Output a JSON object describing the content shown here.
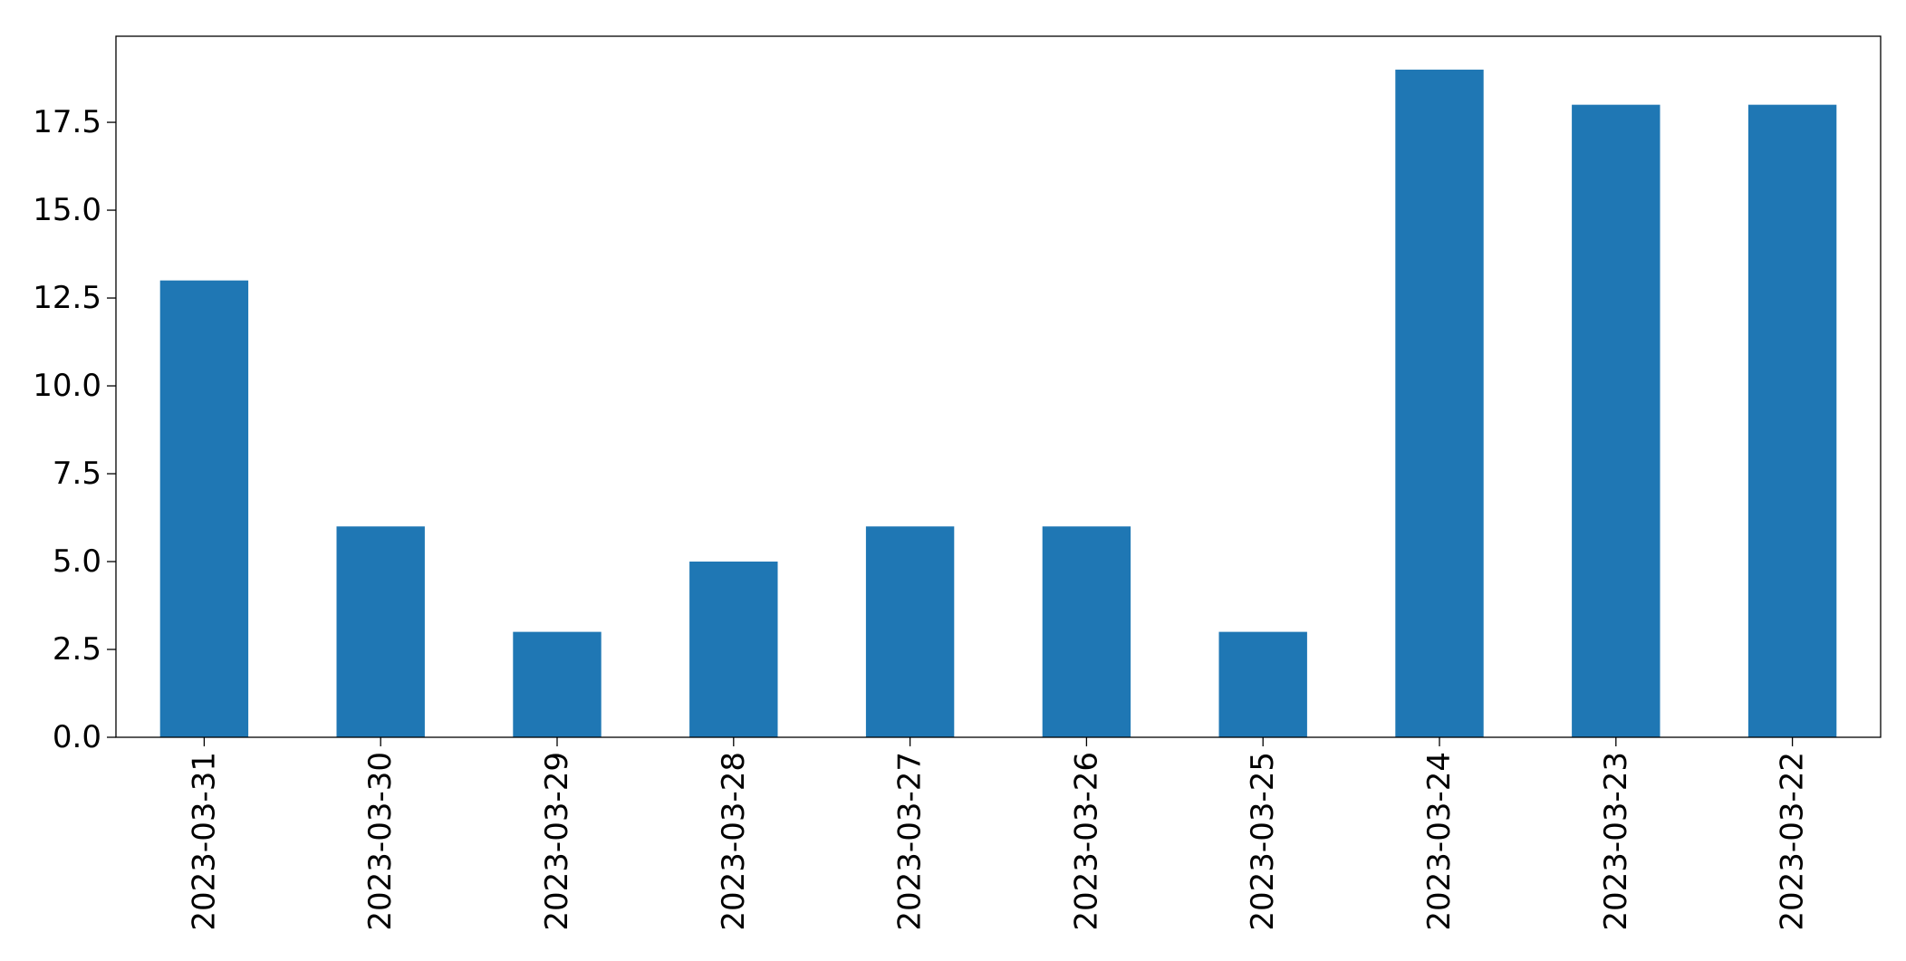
{
  "chart_data": {
    "type": "bar",
    "title": "",
    "xlabel": "",
    "ylabel": "",
    "categories": [
      "2023-03-31",
      "2023-03-30",
      "2023-03-29",
      "2023-03-28",
      "2023-03-27",
      "2023-03-26",
      "2023-03-25",
      "2023-03-24",
      "2023-03-23",
      "2023-03-22"
    ],
    "values": [
      13,
      6,
      3,
      5,
      6,
      6,
      3,
      19,
      18,
      18
    ],
    "ylim": [
      0,
      19.95
    ],
    "yticks": [
      0.0,
      2.5,
      5.0,
      7.5,
      10.0,
      12.5,
      15.0,
      17.5
    ],
    "ytick_labels": [
      "0.0",
      "2.5",
      "5.0",
      "7.5",
      "10.0",
      "12.5",
      "15.0",
      "17.5"
    ],
    "bar_color": "#1f77b4",
    "grid": false,
    "legend": "none"
  }
}
